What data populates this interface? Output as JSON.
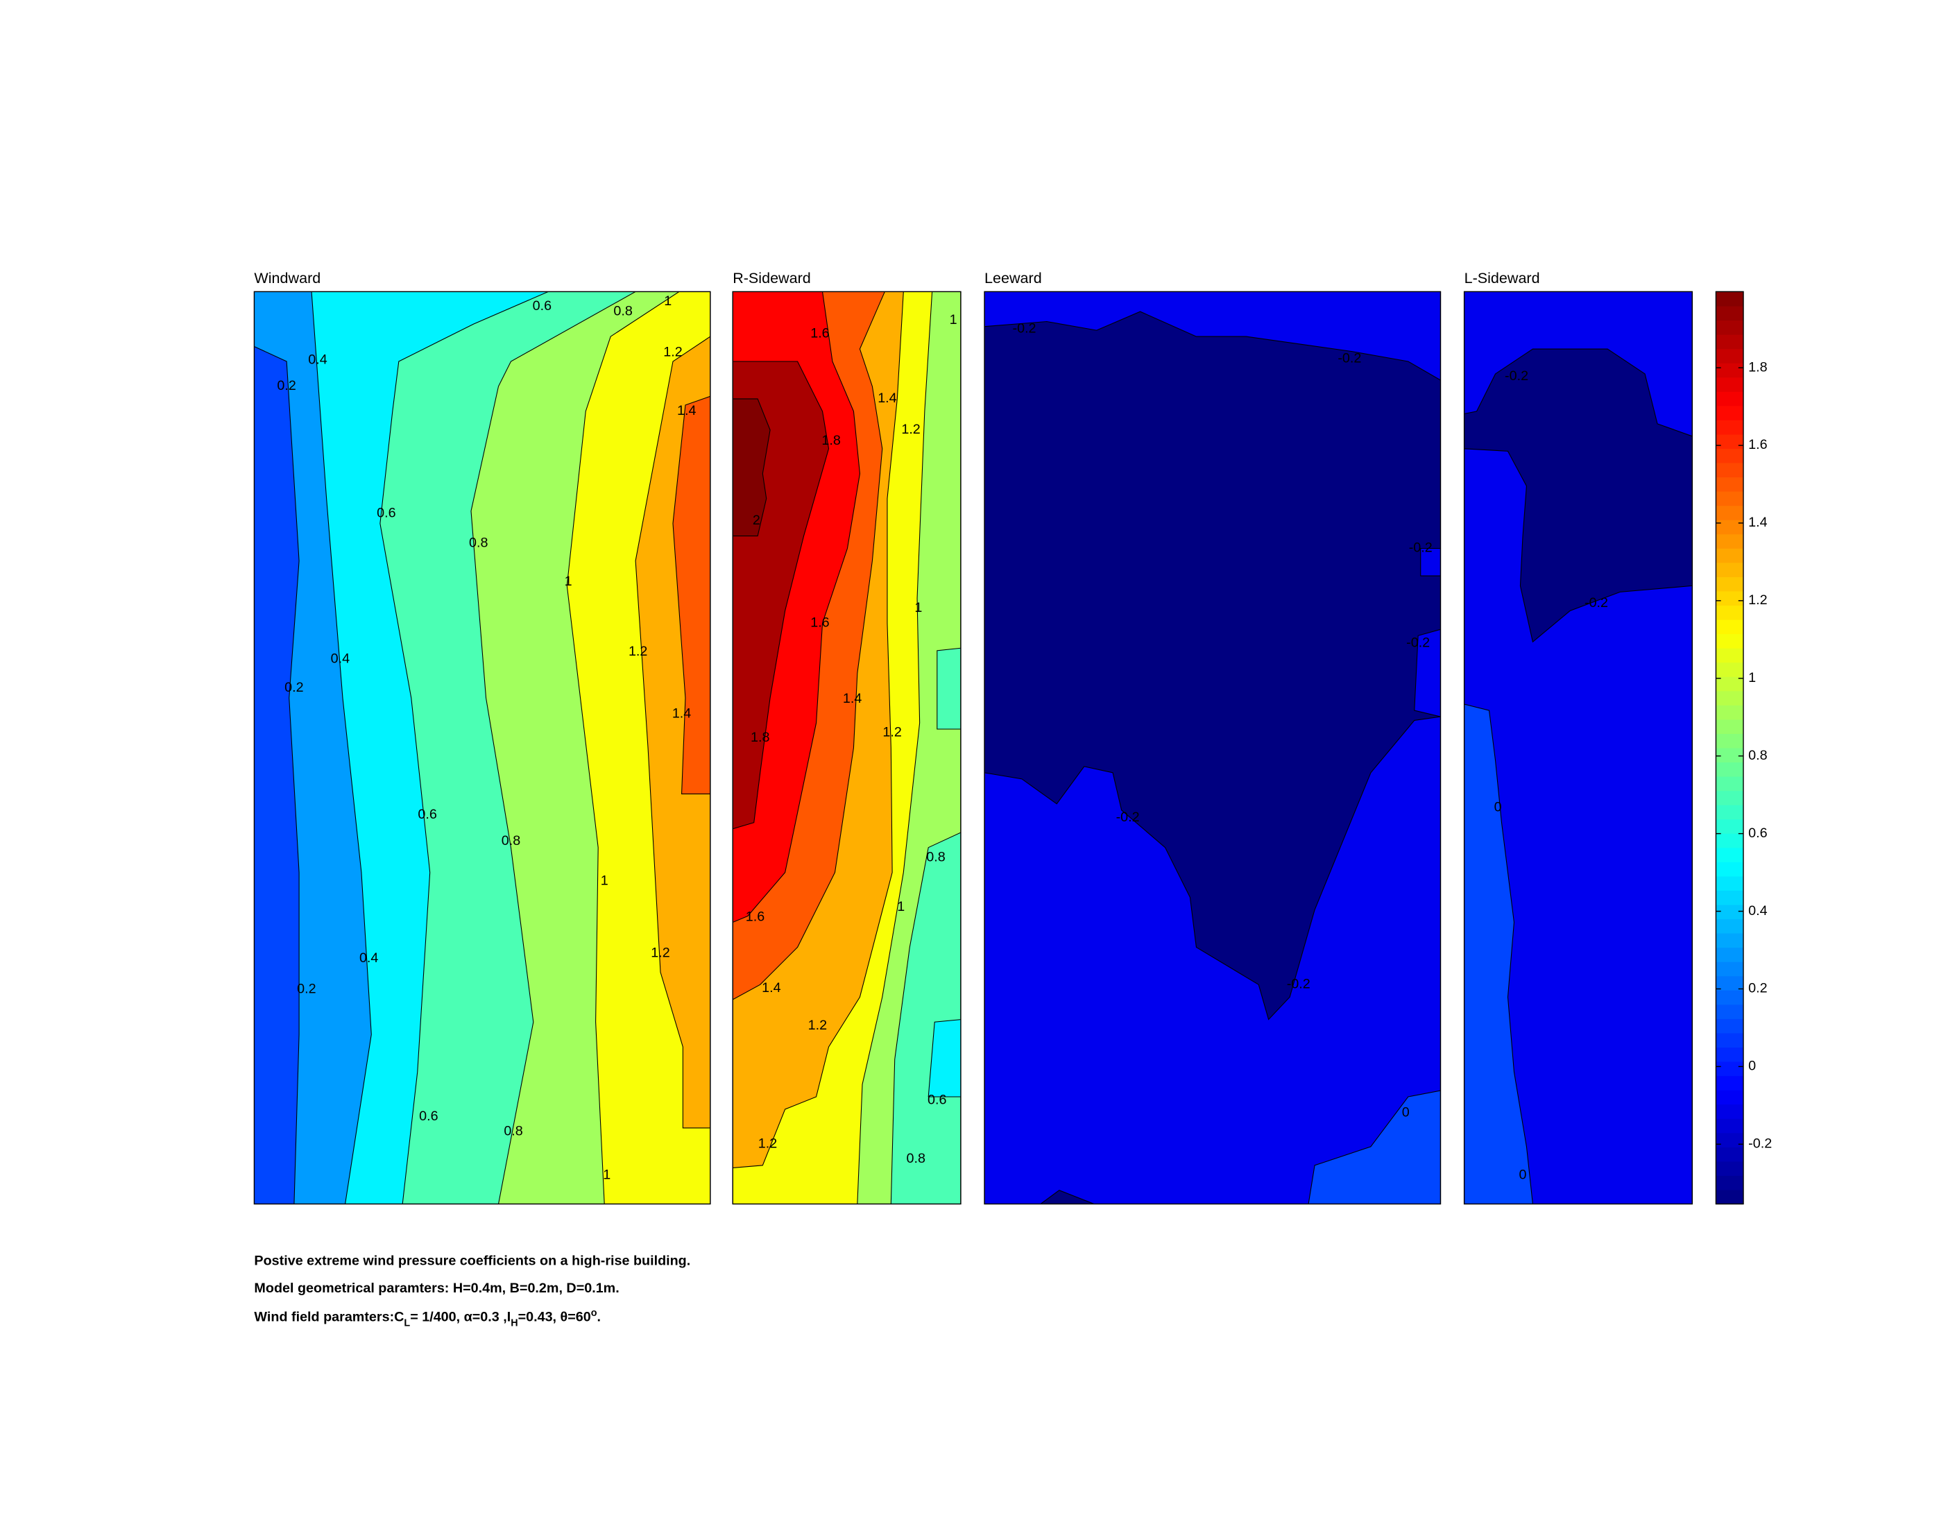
{
  "chart_data": {
    "type": "contour",
    "levels": [
      -0.2,
      0,
      0.2,
      0.4,
      0.6,
      0.8,
      1,
      1.2,
      1.4,
      1.6,
      1.8,
      2
    ],
    "panels": [
      {
        "title": "Windward",
        "contour_labels": [
          0.6,
          0.8,
          1,
          0.4,
          0.2,
          1.2,
          1.4,
          0.6,
          0.8,
          1,
          1.2,
          0.4,
          0.2,
          1.4,
          0.6,
          0.8,
          1,
          0.4,
          1.2,
          0.2,
          0.6,
          0.8,
          1
        ]
      },
      {
        "title": "R-Sideward",
        "contour_labels": [
          1.6,
          1,
          1.4,
          1.2,
          1.8,
          2,
          1,
          1.6,
          1.4,
          1.2,
          1.8,
          0.8,
          1,
          1.6,
          1.4,
          1.2,
          0.6,
          1.2,
          0.8
        ]
      },
      {
        "title": "Leeward",
        "contour_labels": [
          -0.2,
          -0.2,
          -0.2,
          -0.2,
          -0.2,
          -0.2,
          0
        ]
      },
      {
        "title": "L-Sideward",
        "contour_labels": [
          -0.2,
          -0.2,
          0,
          0
        ]
      }
    ],
    "colorbar": {
      "colormap": "jet",
      "ylim": [
        -0.354,
        1.996
      ],
      "yticks": [
        -0.2,
        0,
        0.2,
        0.4,
        0.6,
        0.8,
        1,
        1.2,
        1.4,
        1.6,
        1.8
      ]
    },
    "caption": [
      [
        "Postive extreme  wind pressure coefficients on a high-rise building."
      ],
      [
        "Model geometrical paramters: H=0.4m, B=0.2m, D=0.1m."
      ],
      [
        "Wind field paramters:C",
        "L",
        "= 1/400, α=0.3 ,I",
        "H",
        "=0.43, θ=60",
        "o",
        "."
      ]
    ]
  }
}
